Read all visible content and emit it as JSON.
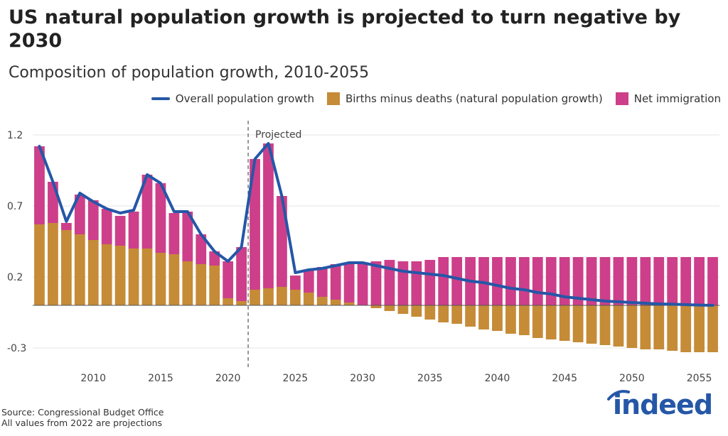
{
  "header": {
    "title": "US natural population growth is projected to turn negative by 2030",
    "subtitle": "Composition of population growth, 2010-2055"
  },
  "legend": {
    "line_label": "Overall population growth",
    "births_label": "Births minus deaths (natural population growth)",
    "immigration_label": "Net immigration"
  },
  "colors": {
    "line": "#2557a7",
    "births": "#c58b37",
    "immigration": "#cd3f8a",
    "grid": "#e6e6e6",
    "baseline": "#555555"
  },
  "footer": {
    "source": "Source: Congressional Budget Office",
    "note": "All values from 2022 are projections"
  },
  "logo": {
    "text": "indeed"
  },
  "chart_data": {
    "type": "bar",
    "stacked": true,
    "annotation": {
      "text": "Projected",
      "x": 2021.5
    },
    "xlim": [
      2005.5,
      2056.5
    ],
    "ylim": [
      -0.45,
      1.3
    ],
    "yticks": [
      1.2,
      0.7,
      0.2,
      -0.3
    ],
    "ytick_labels": [
      "1.2",
      "0.7",
      "0.2",
      "-0.3"
    ],
    "xticks": [
      2010,
      2015,
      2020,
      2025,
      2030,
      2035,
      2040,
      2045,
      2050,
      2055
    ],
    "xtick_labels": [
      "2010",
      "2015",
      "2020",
      "2025",
      "2030",
      "2035",
      "2040",
      "2045",
      "2050",
      "2055"
    ],
    "x": [
      2006,
      2007,
      2008,
      2009,
      2010,
      2011,
      2012,
      2013,
      2014,
      2015,
      2016,
      2017,
      2018,
      2019,
      2020,
      2021,
      2022,
      2023,
      2024,
      2025,
      2026,
      2027,
      2028,
      2029,
      2030,
      2031,
      2032,
      2033,
      2034,
      2035,
      2036,
      2037,
      2038,
      2039,
      2040,
      2041,
      2042,
      2043,
      2044,
      2045,
      2046,
      2047,
      2048,
      2049,
      2050,
      2051,
      2052,
      2053,
      2054,
      2055,
      2056
    ],
    "series": [
      {
        "name": "Births minus deaths (natural population growth)",
        "values": [
          0.57,
          0.58,
          0.53,
          0.5,
          0.46,
          0.43,
          0.42,
          0.4,
          0.4,
          0.37,
          0.36,
          0.31,
          0.29,
          0.28,
          0.05,
          0.03,
          0.11,
          0.12,
          0.13,
          0.11,
          0.09,
          0.06,
          0.04,
          0.02,
          0.0,
          -0.02,
          -0.04,
          -0.06,
          -0.08,
          -0.1,
          -0.12,
          -0.13,
          -0.15,
          -0.17,
          -0.18,
          -0.2,
          -0.21,
          -0.23,
          -0.24,
          -0.25,
          -0.26,
          -0.27,
          -0.28,
          -0.29,
          -0.3,
          -0.31,
          -0.31,
          -0.32,
          -0.33,
          -0.33,
          -0.33
        ]
      },
      {
        "name": "Net immigration",
        "values": [
          0.55,
          0.29,
          0.05,
          0.28,
          0.28,
          0.25,
          0.21,
          0.26,
          0.52,
          0.49,
          0.29,
          0.35,
          0.21,
          0.1,
          0.26,
          0.38,
          0.92,
          1.02,
          0.64,
          0.1,
          0.16,
          0.21,
          0.25,
          0.28,
          0.3,
          0.31,
          0.32,
          0.31,
          0.31,
          0.32,
          0.34,
          0.34,
          0.34,
          0.34,
          0.34,
          0.34,
          0.34,
          0.34,
          0.34,
          0.34,
          0.34,
          0.34,
          0.34,
          0.34,
          0.34,
          0.34,
          0.34,
          0.34,
          0.34,
          0.34,
          0.34
        ]
      },
      {
        "name": "Overall population growth",
        "type": "line",
        "values": [
          1.12,
          0.87,
          0.59,
          0.79,
          0.73,
          0.68,
          0.65,
          0.67,
          0.92,
          0.86,
          0.66,
          0.66,
          0.5,
          0.38,
          0.31,
          0.41,
          1.03,
          1.14,
          0.77,
          0.23,
          0.25,
          0.26,
          0.28,
          0.3,
          0.3,
          0.28,
          0.26,
          0.24,
          0.23,
          0.22,
          0.21,
          0.19,
          0.17,
          0.16,
          0.14,
          0.12,
          0.11,
          0.09,
          0.08,
          0.06,
          0.05,
          0.04,
          0.03,
          0.025,
          0.02,
          0.015,
          0.01,
          0.008,
          0.005,
          0.002,
          0.0
        ]
      }
    ]
  }
}
